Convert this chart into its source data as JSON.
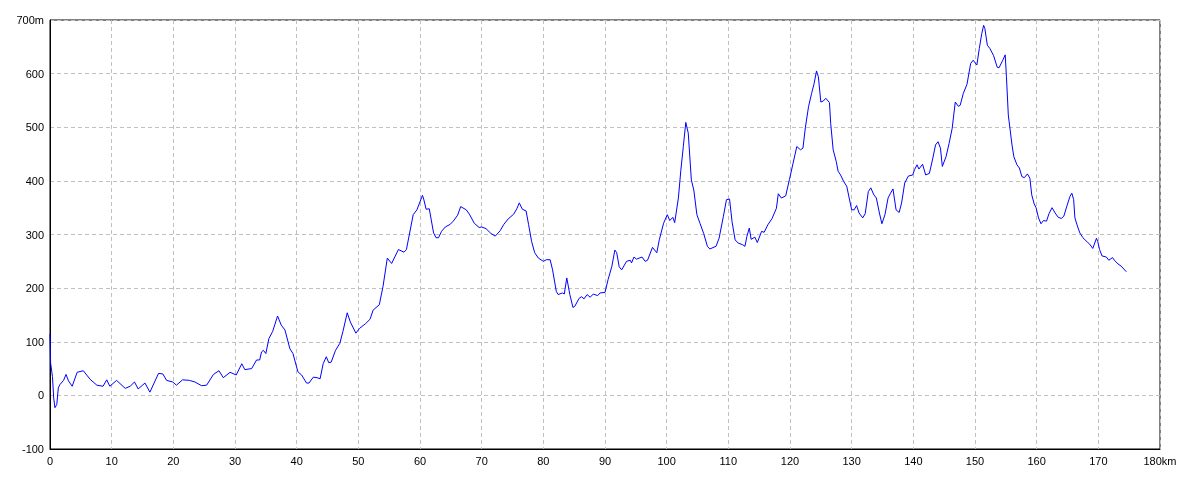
{
  "chart_data": {
    "type": "line",
    "x": [
      0,
      0.1,
      0.4,
      0.6,
      0.8,
      1.1,
      1.35,
      1.6,
      2.2,
      2.6,
      3.0,
      3.6,
      4.4,
      5.4,
      6.5,
      7.6,
      8.6,
      9.2,
      9.7,
      10.8,
      12.2,
      13.0,
      13.7,
      14.3,
      15.4,
      16.2,
      17.6,
      18.3,
      18.9,
      19.9,
      20.5,
      21.5,
      22.6,
      23.5,
      24.6,
      25.4,
      26.5,
      27.4,
      28.1,
      29.2,
      30.2,
      31.1,
      31.6,
      32.7,
      33.5,
      34.0,
      34.3,
      34.6,
      35.0,
      35.5,
      36.1,
      36.9,
      37.5,
      38.1,
      38.9,
      39.4,
      40.2,
      40.8,
      41.6,
      42.0,
      42.7,
      43.3,
      43.8,
      44.3,
      44.8,
      45.2,
      45.6,
      46.3,
      47.0,
      47.5,
      48.2,
      48.7,
      49.6,
      50.2,
      51.2,
      51.9,
      52.4,
      53.4,
      54.0,
      54.7,
      55.4,
      56.5,
      57.4,
      57.8,
      58.9,
      59.5,
      60.4,
      60.6,
      61.0,
      61.5,
      62.2,
      62.6,
      63.0,
      63.5,
      64.1,
      64.9,
      65.4,
      66.1,
      66.6,
      67.5,
      68.0,
      68.8,
      69.6,
      70.0,
      70.7,
      71.5,
      72.2,
      73.0,
      73.6,
      74.3,
      75.2,
      75.7,
      76.1,
      76.6,
      77.2,
      77.6,
      78.1,
      78.6,
      79.2,
      80.0,
      80.5,
      81.1,
      81.5,
      82.1,
      82.4,
      83.1,
      83.4,
      83.8,
      84.3,
      84.8,
      85.1,
      85.8,
      86.2,
      86.6,
      87.1,
      87.6,
      88.1,
      88.8,
      89.2,
      90.0,
      90.5,
      91.1,
      91.6,
      91.9,
      92.3,
      92.7,
      93.5,
      94.1,
      94.3,
      94.7,
      95.1,
      96.0,
      96.5,
      96.9,
      97.7,
      98.4,
      98.8,
      99.5,
      100.1,
      100.5,
      101.0,
      101.3,
      101.9,
      102.3,
      102.7,
      103.1,
      103.5,
      104.0,
      104.4,
      104.9,
      105.4,
      106.0,
      106.6,
      107.0,
      108.0,
      108.5,
      109.2,
      109.7,
      110.2,
      110.6,
      111.1,
      111.6,
      112.3,
      112.7,
      113.0,
      113.4,
      113.7,
      114.3,
      114.7,
      115.4,
      115.8,
      116.4,
      117.1,
      117.8,
      118.1,
      118.6,
      119.3,
      119.9,
      120.5,
      121.1,
      121.7,
      122.1,
      122.5,
      123.0,
      123.5,
      123.9,
      124.3,
      124.6,
      125.0,
      125.4,
      125.8,
      126.4,
      126.6,
      127.0,
      127.5,
      127.8,
      128.2,
      128.7,
      129.2,
      129.6,
      130.0,
      130.4,
      130.8,
      131.2,
      131.8,
      132.2,
      132.7,
      133.1,
      133.6,
      134.0,
      134.5,
      134.9,
      135.4,
      135.9,
      136.3,
      136.7,
      137.2,
      137.7,
      138.1,
      138.6,
      139.2,
      139.9,
      140.2,
      140.6,
      140.9,
      141.5,
      142.0,
      142.6,
      143.1,
      143.6,
      144.0,
      144.4,
      144.7,
      145.3,
      145.8,
      146.3,
      146.8,
      147.3,
      147.6,
      148.1,
      148.7,
      149.3,
      149.7,
      150.3,
      150.7,
      151.1,
      151.4,
      151.6,
      152.0,
      152.4,
      153.0,
      153.6,
      153.9,
      154.5,
      154.9,
      155.1,
      155.4,
      155.7,
      156.0,
      156.3,
      156.8,
      157.2,
      157.6,
      158.0,
      158.5,
      158.9,
      159.2,
      159.6,
      159.9,
      160.3,
      160.7,
      161.1,
      161.6,
      162.0,
      162.5,
      163.0,
      163.5,
      164.0,
      164.4,
      164.9,
      165.4,
      165.7,
      166.0,
      166.2,
      166.6,
      167.0,
      167.5,
      168.2,
      168.6,
      169.1,
      169.7,
      169.9,
      170.2,
      170.6,
      171.3,
      171.7,
      172.3,
      172.6,
      173.2,
      173.7,
      174.5
    ],
    "series": [
      {
        "color": "#0000ff",
        "values": [
          114,
          60,
          35,
          -5,
          -23,
          -17,
          14,
          20,
          28,
          39,
          27,
          17,
          43,
          46,
          30,
          19,
          17,
          29,
          17,
          28,
          13,
          17,
          25,
          12,
          23,
          6,
          41,
          40,
          28,
          25,
          19,
          29,
          28,
          25,
          18,
          19,
          39,
          46,
          33,
          43,
          38,
          59,
          48,
          50,
          66,
          66,
          81,
          84,
          78,
          106,
          119,
          148,
          131,
          122,
          87,
          78,
          44,
          38,
          23,
          23,
          34,
          33,
          31,
          59,
          72,
          61,
          62,
          84,
          97,
          119,
          154,
          137,
          116,
          125,
          134,
          142,
          159,
          169,
          203,
          256,
          246,
          272,
          267,
          272,
          337,
          346,
          373,
          366,
          347,
          348,
          303,
          294,
          294,
          306,
          314,
          319,
          325,
          336,
          352,
          346,
          338,
          321,
          313,
          314,
          311,
          302,
          297,
          307,
          319,
          329,
          338,
          348,
          359,
          347,
          344,
          319,
          287,
          266,
          256,
          250,
          253,
          253,
          234,
          194,
          188,
          191,
          189,
          219,
          188,
          164,
          166,
          181,
          184,
          180,
          188,
          183,
          189,
          186,
          191,
          192,
          216,
          240,
          271,
          266,
          240,
          234,
          250,
          252,
          247,
          258,
          254,
          258,
          250,
          252,
          276,
          266,
          290,
          321,
          337,
          326,
          332,
          322,
          368,
          420,
          464,
          509,
          489,
          402,
          383,
          337,
          321,
          302,
          278,
          273,
          278,
          293,
          334,
          365,
          366,
          324,
          290,
          284,
          281,
          278,
          296,
          312,
          291,
          295,
          285,
          306,
          304,
          318,
          330,
          349,
          376,
          368,
          372,
          402,
          433,
          464,
          458,
          461,
          500,
          538,
          563,
          581,
          605,
          594,
          547,
          549,
          554,
          546,
          507,
          458,
          436,
          418,
          411,
          399,
          390,
          368,
          346,
          346,
          354,
          340,
          331,
          339,
          380,
          387,
          374,
          368,
          340,
          320,
          337,
          368,
          377,
          385,
          346,
          341,
          359,
          396,
          409,
          411,
          421,
          430,
          422,
          431,
          411,
          414,
          439,
          467,
          473,
          461,
          427,
          445,
          470,
          498,
          547,
          539,
          541,
          563,
          580,
          619,
          625,
          616,
          647,
          675,
          690,
          684,
          653,
          647,
          634,
          612,
          611,
          625,
          635,
          594,
          523,
          495,
          467,
          445,
          430,
          424,
          408,
          406,
          413,
          405,
          374,
          357,
          350,
          331,
          320,
          326,
          325,
          339,
          350,
          340,
          332,
          330,
          334,
          353,
          371,
          377,
          365,
          331,
          316,
          303,
          294,
          286,
          282,
          274,
          293,
          287,
          272,
          260,
          258,
          252,
          257,
          252,
          245,
          241,
          231
        ]
      }
    ],
    "xlim": [
      0,
      180
    ],
    "xticks": [
      0,
      10,
      20,
      30,
      40,
      50,
      60,
      70,
      80,
      90,
      100,
      110,
      120,
      130,
      140,
      150,
      160,
      170,
      {
        "value": 180,
        "label": "180km"
      }
    ],
    "ylim": [
      -100,
      700
    ],
    "yticks": [
      -100,
      0,
      100,
      200,
      300,
      400,
      500,
      600,
      {
        "value": 700,
        "label": "700m"
      }
    ],
    "grid": true,
    "marker": "none",
    "line_style": "solid"
  }
}
